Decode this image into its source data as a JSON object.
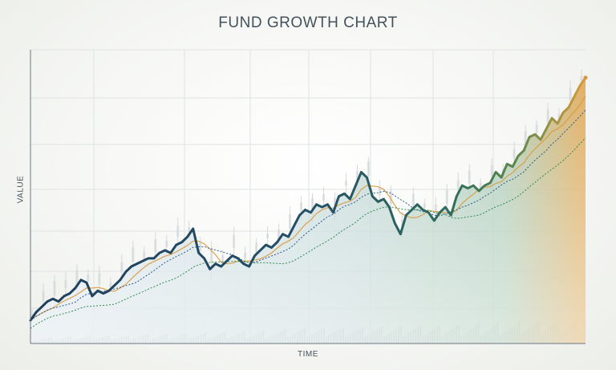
{
  "chart_data": {
    "type": "line",
    "title": "FUND GROWTH CHART",
    "xlabel": "TIME",
    "ylabel": "VALUE",
    "grid": true,
    "legend": "none",
    "x": [
      0,
      1,
      2,
      3,
      4,
      5,
      6,
      7,
      8,
      9,
      10,
      11,
      12,
      13,
      14,
      15,
      16,
      17,
      18,
      19,
      20,
      21,
      22,
      23,
      24,
      25,
      26,
      27,
      28,
      29,
      30,
      31,
      32,
      33,
      34,
      35,
      36,
      37,
      38,
      39,
      40,
      41,
      42,
      43,
      44,
      45,
      46,
      47,
      48,
      49,
      50,
      51,
      52,
      53,
      54,
      55,
      56,
      57,
      58,
      59,
      60,
      61,
      62,
      63,
      64,
      65,
      66,
      67,
      68,
      69,
      70,
      71,
      72,
      73,
      74,
      75,
      76,
      77,
      78,
      79,
      80,
      81,
      82,
      83,
      84,
      85,
      86,
      87,
      88,
      89,
      90,
      91,
      92,
      93,
      94,
      95,
      96,
      97,
      98,
      99
    ],
    "xlim": [
      0,
      99
    ],
    "ylim": [
      0,
      100
    ],
    "series": [
      {
        "values": [
          5,
          8,
          10,
          12,
          13,
          12,
          14,
          15,
          17,
          20,
          19,
          14,
          16,
          15,
          16,
          18,
          20,
          23,
          25,
          26,
          27,
          28,
          28,
          30,
          31,
          30,
          33,
          34,
          36,
          39,
          30,
          28,
          24,
          26,
          25,
          27,
          29,
          28,
          26,
          25,
          29,
          31,
          33,
          32,
          34,
          37,
          36,
          40,
          44,
          46,
          45,
          48,
          47,
          48,
          45,
          51,
          52,
          50,
          55,
          60,
          58,
          51,
          49,
          50,
          47,
          41,
          37,
          44,
          46,
          48,
          46,
          45,
          42,
          45,
          47,
          44,
          51,
          55,
          54,
          55,
          53,
          55,
          56,
          60,
          58,
          63,
          62,
          66,
          68,
          73,
          74,
          72,
          76,
          80,
          78,
          82,
          84,
          88,
          92,
          95
        ]
      }
    ],
    "overlays": [
      "moving-average-short",
      "moving-average-long",
      "volume-bars",
      "candlesticks"
    ],
    "colors": {
      "line_start": "#1e3f5c",
      "line_mid": "#2e6b5e",
      "line_end": "#d99a3c",
      "ma_short": "#2b5a8a",
      "ma_long": "#2f8a4f",
      "area_top": "#e0a349",
      "area_mid": "#6fa69b",
      "area_low": "#b8cde3",
      "grid": "#dfe3e4"
    }
  }
}
